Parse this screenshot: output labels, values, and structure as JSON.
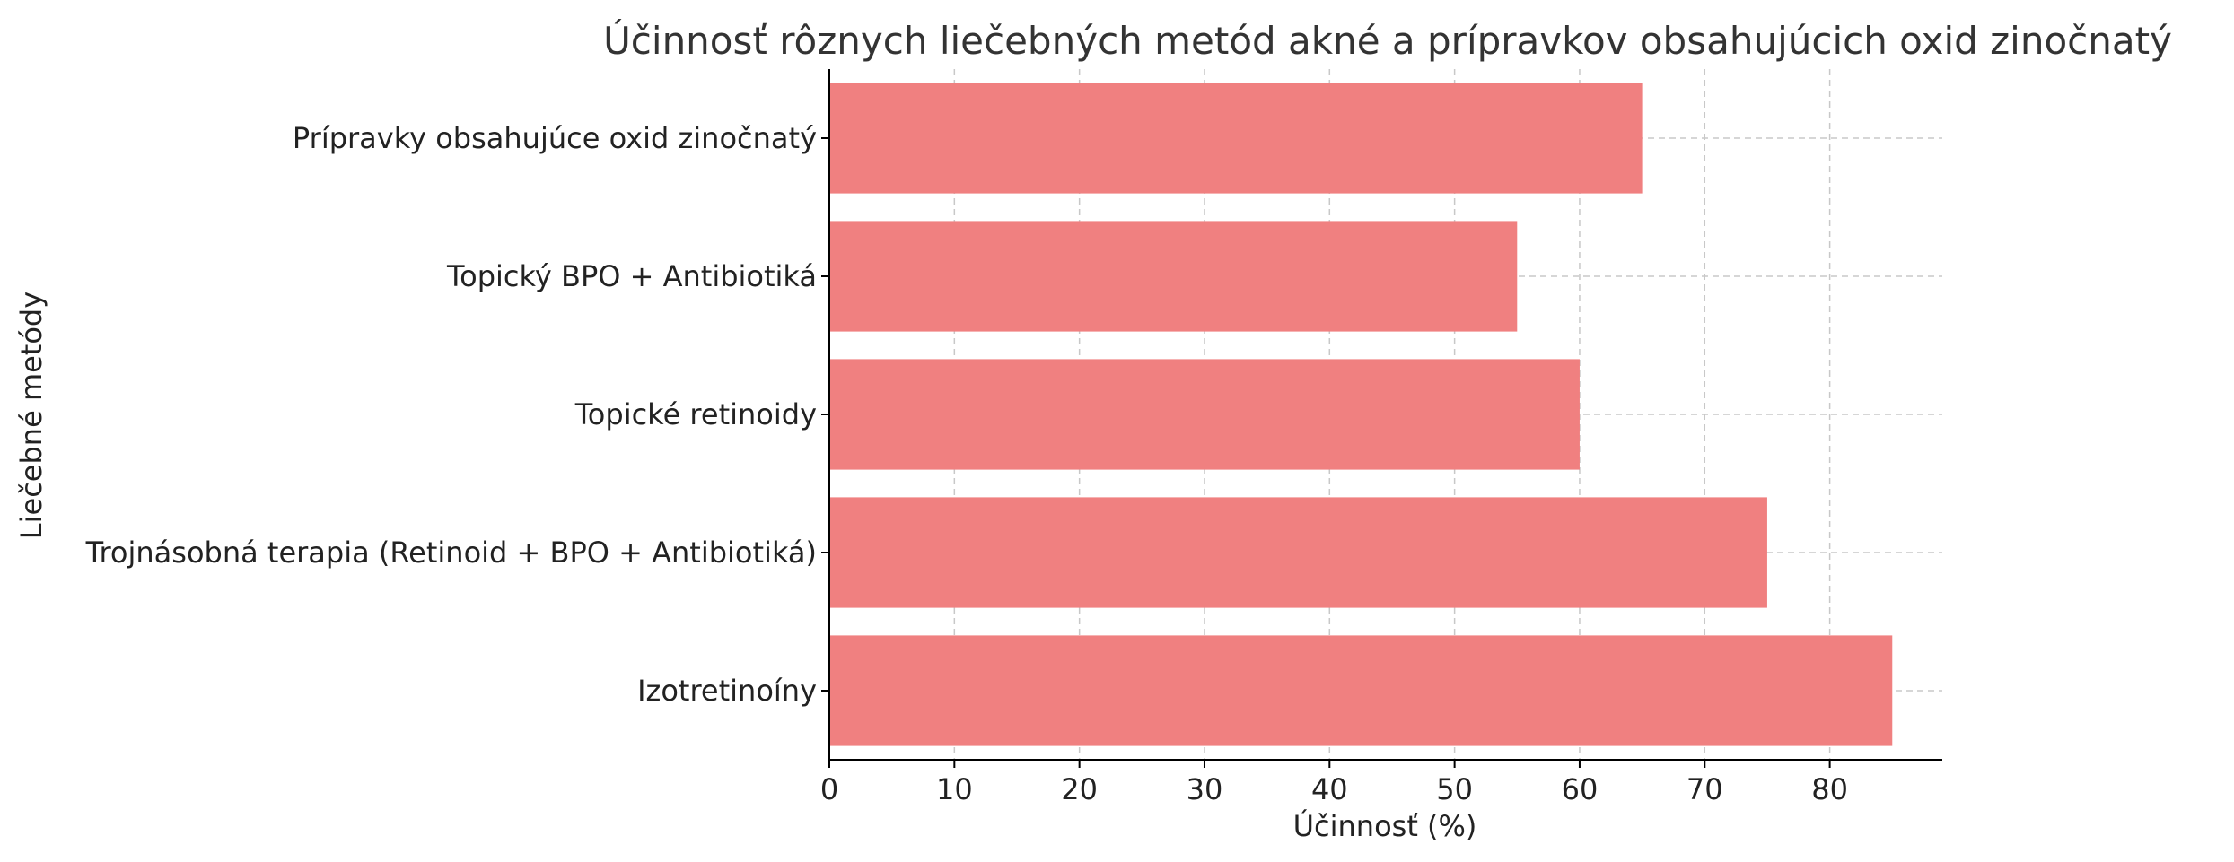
{
  "chart_data": {
    "type": "bar",
    "orientation": "horizontal",
    "title": "Účinnosť rôznych liečebných metód akné a prípravkov obsahujúcich oxid zinočnatý",
    "xlabel": "Účinnosť (%)",
    "ylabel": "Liečebné metódy",
    "categories": [
      "Izotretinoíny",
      "Trojnásobná terapia (Retinoid + BPO + Antibiotiká)",
      "Topické retinoidy",
      "Topický BPO + Antibiotiká",
      "Prípravky obsahujúce oxid zinočnatý"
    ],
    "values": [
      85,
      75,
      60,
      55,
      65
    ],
    "xlim": [
      0,
      89
    ],
    "xticks": [
      0,
      10,
      20,
      30,
      40,
      50,
      60,
      70,
      80
    ],
    "grid": true,
    "bar_color": "#f08080",
    "legend": "none"
  }
}
